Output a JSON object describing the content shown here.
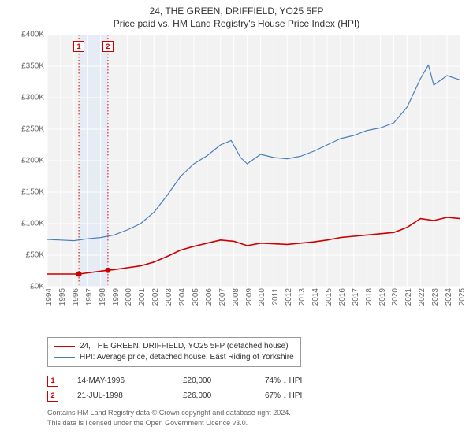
{
  "title_line1": "24, THE GREEN, DRIFFIELD, YO25 5FP",
  "title_line2": "Price paid vs. HM Land Registry's House Price Index (HPI)",
  "chart": {
    "type": "line",
    "background_color": "#f2f2f2",
    "grid_color": "#ffffff",
    "ylim": [
      0,
      400000
    ],
    "ytick_step": 50000,
    "ytick_labels": [
      "£0K",
      "£50K",
      "£100K",
      "£150K",
      "£200K",
      "£250K",
      "£300K",
      "£350K",
      "£400K"
    ],
    "xlim": [
      1994,
      2025
    ],
    "xticks": [
      1994,
      1995,
      1996,
      1997,
      1998,
      1999,
      2000,
      2001,
      2002,
      2003,
      2004,
      2005,
      2006,
      2007,
      2008,
      2009,
      2010,
      2011,
      2012,
      2013,
      2014,
      2015,
      2016,
      2017,
      2018,
      2019,
      2020,
      2021,
      2022,
      2023,
      2024,
      2025
    ],
    "series": [
      {
        "id": "hpi",
        "label": "HPI: Average price, detached house, East Riding of Yorkshire",
        "color": "#4a7ebb",
        "line_width": 1.2,
        "points": [
          [
            1994,
            75000
          ],
          [
            1995,
            74000
          ],
          [
            1996,
            73000
          ],
          [
            1997,
            76000
          ],
          [
            1998,
            78000
          ],
          [
            1999,
            82000
          ],
          [
            2000,
            90000
          ],
          [
            2001,
            100000
          ],
          [
            2002,
            118000
          ],
          [
            2003,
            145000
          ],
          [
            2004,
            175000
          ],
          [
            2005,
            195000
          ],
          [
            2006,
            208000
          ],
          [
            2007,
            225000
          ],
          [
            2007.8,
            232000
          ],
          [
            2008.5,
            205000
          ],
          [
            2009,
            195000
          ],
          [
            2010,
            210000
          ],
          [
            2011,
            205000
          ],
          [
            2012,
            203000
          ],
          [
            2013,
            207000
          ],
          [
            2014,
            215000
          ],
          [
            2015,
            225000
          ],
          [
            2016,
            235000
          ],
          [
            2017,
            240000
          ],
          [
            2018,
            248000
          ],
          [
            2019,
            252000
          ],
          [
            2020,
            260000
          ],
          [
            2021,
            285000
          ],
          [
            2022,
            330000
          ],
          [
            2022.6,
            352000
          ],
          [
            2023,
            320000
          ],
          [
            2024,
            335000
          ],
          [
            2025,
            328000
          ]
        ]
      },
      {
        "id": "property",
        "label": "24, THE GREEN, DRIFFIELD, YO25 5FP (detached house)",
        "color": "#cc0000",
        "line_width": 1.6,
        "points": [
          [
            1994,
            20000
          ],
          [
            1996.37,
            20000
          ],
          [
            1998.55,
            26000
          ],
          [
            1999,
            27000
          ],
          [
            2000,
            30000
          ],
          [
            2001,
            33000
          ],
          [
            2002,
            39000
          ],
          [
            2003,
            48000
          ],
          [
            2004,
            58000
          ],
          [
            2005,
            64000
          ],
          [
            2006,
            69000
          ],
          [
            2007,
            74000
          ],
          [
            2008,
            72000
          ],
          [
            2009,
            65000
          ],
          [
            2010,
            69000
          ],
          [
            2011,
            68000
          ],
          [
            2012,
            67000
          ],
          [
            2013,
            69000
          ],
          [
            2014,
            71000
          ],
          [
            2015,
            74000
          ],
          [
            2016,
            78000
          ],
          [
            2017,
            80000
          ],
          [
            2018,
            82000
          ],
          [
            2019,
            84000
          ],
          [
            2020,
            86000
          ],
          [
            2021,
            94000
          ],
          [
            2022,
            108000
          ],
          [
            2023,
            105000
          ],
          [
            2024,
            110000
          ],
          [
            2025,
            108000
          ]
        ]
      }
    ],
    "markers": [
      {
        "badge": "1",
        "x": 1996.37,
        "y": 20000,
        "color": "#cc0000"
      },
      {
        "badge": "2",
        "x": 1998.55,
        "y": 26000,
        "color": "#cc0000"
      }
    ],
    "marker_vertical_line_color": "#cc0000",
    "highlight_band": {
      "from": 1996.37,
      "to": 1998.55,
      "color": "#e6ecf5"
    }
  },
  "legend": {
    "border_color": "#999999",
    "items": [
      {
        "color": "#cc0000",
        "label": "24, THE GREEN, DRIFFIELD, YO25 5FP (detached house)"
      },
      {
        "color": "#4a7ebb",
        "label": "HPI: Average price, detached house, East Riding of Yorkshire"
      }
    ]
  },
  "transactions": [
    {
      "badge": "1",
      "badge_color": "#cc0000",
      "date": "14-MAY-1996",
      "price": "£20,000",
      "delta": "74% ↓ HPI"
    },
    {
      "badge": "2",
      "badge_color": "#cc0000",
      "date": "21-JUL-1998",
      "price": "£26,000",
      "delta": "67% ↓ HPI"
    }
  ],
  "footer_line1": "Contains HM Land Registry data © Crown copyright and database right 2024.",
  "footer_line2": "This data is licensed under the Open Government Licence v3.0.",
  "colors": {
    "title_text": "#333333",
    "axis_text": "#666666",
    "footer_text": "#666666"
  }
}
